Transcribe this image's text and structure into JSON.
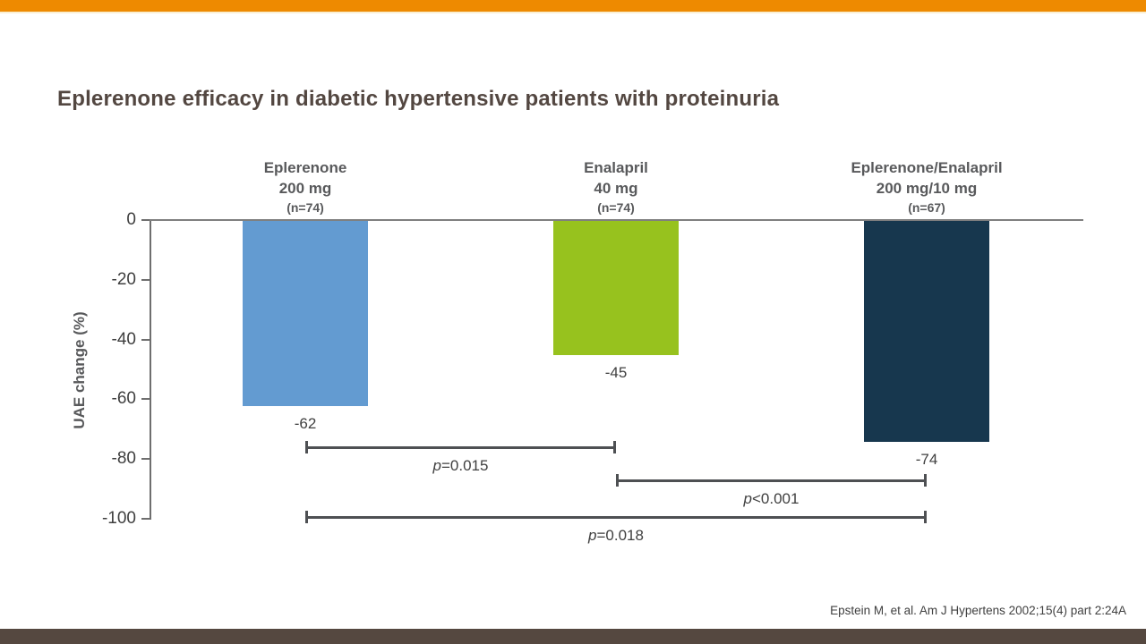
{
  "slide": {
    "accent_bar_color": "#EE8A00",
    "footer_bar_color": "#554840",
    "citation": "Epstein M, et al. Am J Hypertens 2002;15(4) part 2:24A"
  },
  "chart_data": {
    "type": "bar",
    "title": "Eplerenone efficacy in diabetic hypertensive patients with proteinuria",
    "ylabel": "UAE change (%)",
    "ylim": [
      -100,
      0
    ],
    "yticks": [
      0,
      -20,
      -40,
      -60,
      -80,
      -100
    ],
    "grid": false,
    "legend": "none",
    "bars": [
      {
        "group": "Eplerenone",
        "dose": "200 mg",
        "n": "(n=74)",
        "value": -62,
        "value_label": "-62",
        "color": "#639BD1"
      },
      {
        "group": "Enalapril",
        "dose": "40 mg",
        "n": "(n=74)",
        "value": -45,
        "value_label": "-45",
        "color": "#97C21E"
      },
      {
        "group": "Eplerenone/Enalapril",
        "dose": "200 mg/10 mg",
        "n": "(n=67)",
        "value": -74,
        "value_label": "-74",
        "color": "#17374E"
      }
    ],
    "comparisons": [
      {
        "between": [
          0,
          1
        ],
        "label": "p=0.015"
      },
      {
        "between": [
          1,
          2
        ],
        "label": "p<0.001"
      },
      {
        "between": [
          0,
          2
        ],
        "label": "p=0.018"
      }
    ]
  }
}
